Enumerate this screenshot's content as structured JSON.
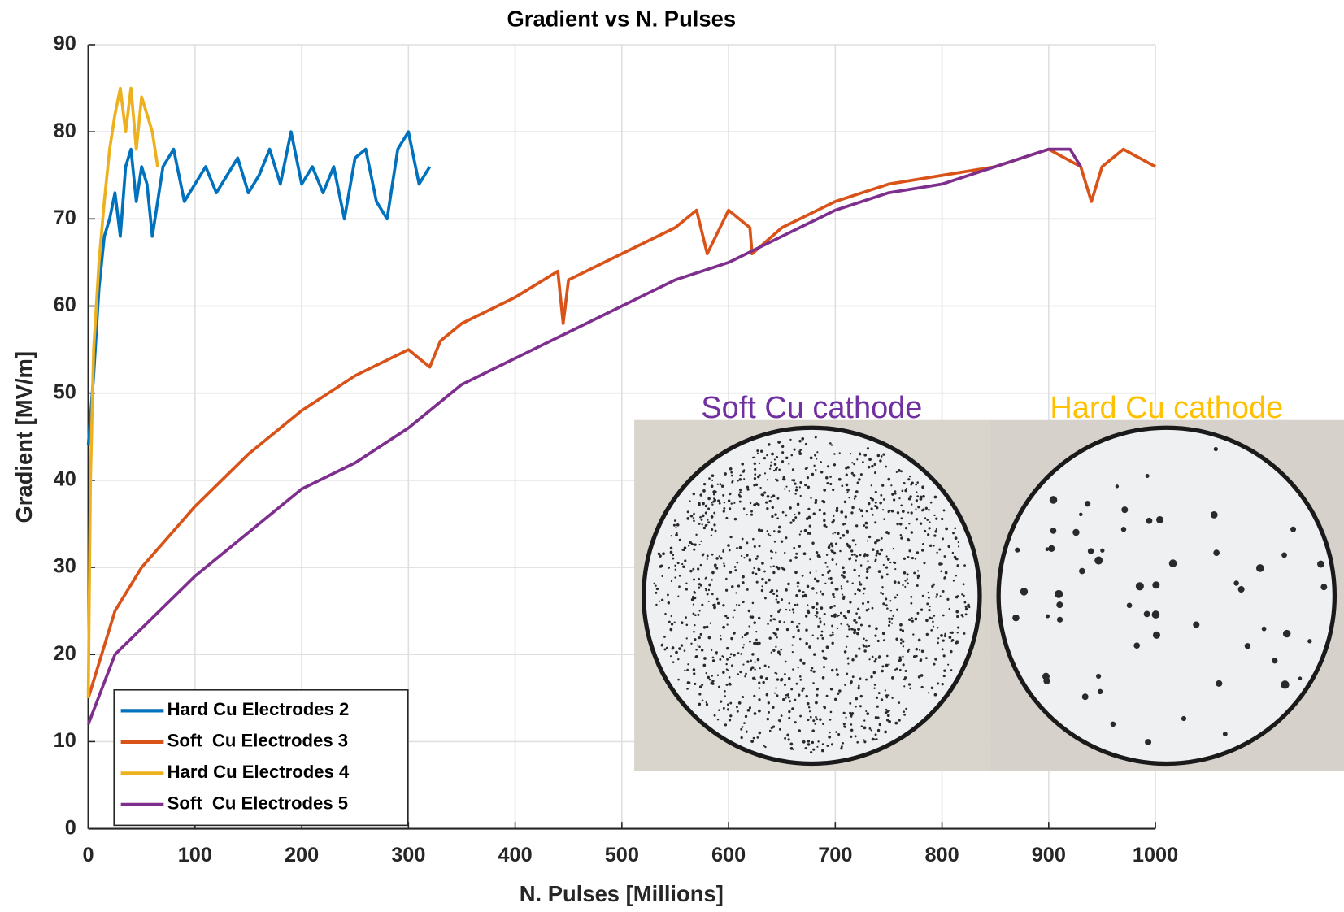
{
  "chart_data": {
    "type": "line",
    "title": "Gradient vs N. Pulses",
    "x_label": "N. Pulses [Millions]",
    "y_label": "Gradient [MV/m]",
    "xlim": [
      0,
      1000
    ],
    "xticks": [
      0,
      100,
      200,
      300,
      400,
      500,
      600,
      700,
      800,
      900,
      1000
    ],
    "ylim": [
      0,
      90
    ],
    "yticks": [
      0,
      10,
      20,
      30,
      40,
      50,
      60,
      70,
      80,
      90
    ],
    "grid": true,
    "legend": "lower left",
    "series": [
      {
        "name": "Hard Cu Electrodes 2",
        "color": "#0072bd",
        "x": [
          0,
          5,
          10,
          15,
          20,
          25,
          30,
          35,
          40,
          45,
          50,
          55,
          60,
          65,
          70,
          80,
          90,
          100,
          110,
          120,
          130,
          140,
          150,
          160,
          170,
          180,
          190,
          200,
          210,
          220,
          230,
          240,
          250,
          260,
          270,
          280,
          290,
          300,
          310,
          320
        ],
        "values": [
          44,
          52,
          62,
          68,
          70,
          73,
          68,
          76,
          78,
          72,
          76,
          74,
          68,
          72,
          76,
          78,
          72,
          74,
          76,
          73,
          75,
          77,
          73,
          75,
          78,
          74,
          80,
          74,
          76,
          73,
          76,
          70,
          77,
          78,
          72,
          70,
          78,
          80,
          74,
          76
        ]
      },
      {
        "name": "Soft  Cu Electrodes 3",
        "color": "#d95319",
        "x": [
          0,
          25,
          50,
          100,
          150,
          200,
          250,
          300,
          320,
          330,
          350,
          400,
          440,
          445,
          450,
          500,
          550,
          570,
          580,
          600,
          620,
          622,
          650,
          700,
          750,
          800,
          850,
          900,
          930,
          940,
          950,
          970,
          1000
        ],
        "values": [
          15,
          25,
          30,
          37,
          43,
          48,
          52,
          55,
          53,
          56,
          58,
          61,
          64,
          58,
          63,
          66,
          69,
          71,
          66,
          71,
          69,
          66,
          69,
          72,
          74,
          75,
          76,
          78,
          76,
          72,
          76,
          78,
          76
        ]
      },
      {
        "name": "Hard Cu Electrodes 4",
        "color": "#edb120",
        "x": [
          0,
          2,
          5,
          10,
          15,
          20,
          25,
          30,
          35,
          40,
          45,
          50,
          55,
          60,
          65
        ],
        "values": [
          15,
          40,
          55,
          65,
          72,
          78,
          82,
          85,
          80,
          85,
          78,
          84,
          82,
          80,
          76
        ]
      },
      {
        "name": "Soft  Cu Electrodes 5",
        "color": "#7e2f8e",
        "x": [
          0,
          25,
          50,
          100,
          150,
          200,
          250,
          300,
          350,
          400,
          450,
          500,
          550,
          600,
          650,
          700,
          750,
          800,
          850,
          900,
          920,
          930
        ],
        "values": [
          12,
          20,
          23,
          29,
          34,
          39,
          42,
          46,
          51,
          54,
          57,
          60,
          63,
          65,
          68,
          71,
          73,
          74,
          76,
          78,
          78,
          76
        ]
      }
    ],
    "insets": [
      {
        "label": "Soft Cu cathode",
        "color": "#7030a0"
      },
      {
        "label": "Hard Cu cathode",
        "color": "#ffc000"
      }
    ]
  }
}
